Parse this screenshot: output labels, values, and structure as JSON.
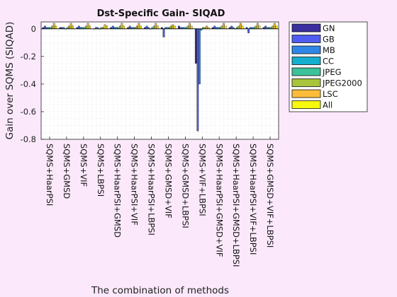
{
  "chart_data": {
    "type": "bar",
    "title": "Dst-Specific Gain- SIQAD",
    "xlabel": "The combination of methods",
    "ylabel": "Gain over SQMS (SIQAD)",
    "ylim": [
      -0.8,
      0.05
    ],
    "yticks": [
      0,
      -0.2,
      -0.4,
      -0.6,
      -0.8
    ],
    "ytick_labels": [
      "0",
      "-0.2",
      "-0.4",
      "-0.6",
      "-0.8"
    ],
    "grid": true,
    "legend_position": "outside-right",
    "categories": [
      "SQMS+HaarPSI",
      "SQMS+GMSD",
      "SQMS+VIF",
      "SQMS+LBPSI",
      "SQMS+HaarPSI+GMSD",
      "SQMS+HaarPSI+VIF",
      "SQMS+HaarPSI+LBPSI",
      "SQMS+GMSD+VIF",
      "SQMS+GMSD+LBPSI",
      "SQMS+VIF+LBPSI",
      "SQMS+HaarPSI+GMSD+VIF",
      "SQMS+HaarPSI+GMSD+LBPSI",
      "SQMS+HaarPSI+VIF+LBPSI",
      "SQMS+GMSD+VIF+LBPSI"
    ],
    "series": [
      {
        "name": "GN",
        "color": "#3a2f9e",
        "values": [
          0.01,
          0.01,
          0.01,
          0.0,
          0.01,
          0.01,
          0.01,
          0.01,
          0.02,
          -0.25,
          0.01,
          0.01,
          0.01,
          0.01
        ]
      },
      {
        "name": "GB",
        "color": "#4f5ef0",
        "values": [
          0.02,
          0.01,
          0.02,
          0.01,
          0.02,
          0.02,
          0.02,
          -0.06,
          0.01,
          -0.74,
          0.02,
          0.02,
          -0.03,
          0.02
        ]
      },
      {
        "name": "MB",
        "color": "#2f86e6",
        "values": [
          0.01,
          0.01,
          0.01,
          0.01,
          0.01,
          0.01,
          0.01,
          0.01,
          0.01,
          -0.4,
          0.01,
          0.01,
          0.01,
          0.01
        ]
      },
      {
        "name": "CC",
        "color": "#14aecf",
        "values": [
          0.01,
          0.0,
          0.01,
          0.0,
          0.01,
          0.01,
          0.0,
          0.01,
          0.01,
          -0.01,
          0.01,
          0.0,
          0.01,
          0.01
        ]
      },
      {
        "name": "JPEG",
        "color": "#3cc29a",
        "values": [
          0.01,
          0.01,
          0.01,
          0.01,
          0.01,
          0.01,
          0.01,
          0.01,
          0.01,
          0.01,
          0.01,
          0.01,
          0.01,
          0.01
        ]
      },
      {
        "name": "JPEG2000",
        "color": "#a8c43a",
        "values": [
          0.02,
          0.02,
          0.02,
          0.01,
          0.02,
          0.02,
          0.02,
          0.02,
          0.02,
          0.01,
          0.02,
          0.02,
          0.02,
          0.02
        ]
      },
      {
        "name": "LSC",
        "color": "#fcbc3a",
        "values": [
          0.04,
          0.04,
          0.04,
          0.03,
          0.04,
          0.04,
          0.04,
          0.03,
          0.04,
          0.02,
          0.04,
          0.04,
          0.04,
          0.04
        ]
      },
      {
        "name": "All",
        "color": "#f8f80e",
        "values": [
          0.02,
          0.02,
          0.02,
          0.02,
          0.02,
          0.02,
          0.02,
          0.02,
          0.02,
          0.01,
          0.02,
          0.02,
          0.02,
          0.02
        ]
      }
    ]
  }
}
